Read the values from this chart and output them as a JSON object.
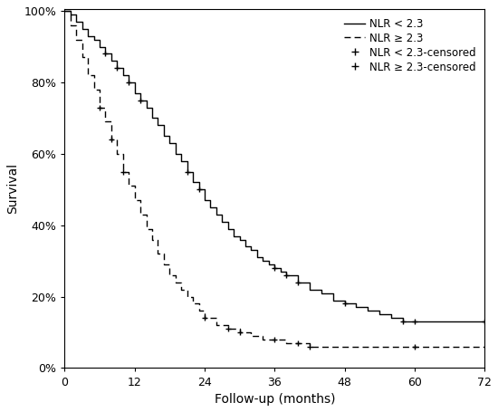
{
  "title": "",
  "xlabel": "Follow-up (months)",
  "ylabel": "Survival",
  "xlim": [
    0,
    72
  ],
  "ylim": [
    0,
    1.005
  ],
  "xticks": [
    0,
    12,
    24,
    36,
    48,
    60,
    72
  ],
  "yticks": [
    0.0,
    0.2,
    0.4,
    0.6,
    0.8,
    1.0
  ],
  "ytick_labels": [
    "0%",
    "20%",
    "40%",
    "60%",
    "80%",
    "100%"
  ],
  "background_color": "#ffffff",
  "nlr_low_x": [
    0,
    1,
    2,
    3,
    4,
    5,
    6,
    7,
    8,
    9,
    10,
    11,
    12,
    13,
    14,
    15,
    16,
    17,
    18,
    19,
    20,
    21,
    22,
    23,
    24,
    25,
    26,
    27,
    28,
    29,
    30,
    31,
    32,
    33,
    34,
    35,
    36,
    37,
    38,
    40,
    42,
    44,
    46,
    48,
    50,
    52,
    54,
    56,
    58,
    60,
    62,
    64,
    66,
    68,
    70,
    72
  ],
  "nlr_low_y": [
    1.0,
    0.99,
    0.97,
    0.95,
    0.93,
    0.92,
    0.9,
    0.88,
    0.86,
    0.84,
    0.82,
    0.8,
    0.77,
    0.75,
    0.73,
    0.7,
    0.68,
    0.65,
    0.63,
    0.6,
    0.58,
    0.55,
    0.52,
    0.5,
    0.47,
    0.45,
    0.43,
    0.41,
    0.39,
    0.37,
    0.36,
    0.34,
    0.33,
    0.31,
    0.3,
    0.29,
    0.28,
    0.27,
    0.26,
    0.24,
    0.22,
    0.21,
    0.19,
    0.18,
    0.17,
    0.16,
    0.15,
    0.14,
    0.13,
    0.13,
    0.13,
    0.13,
    0.13,
    0.13,
    0.13,
    0.13
  ],
  "nlr_high_x": [
    0,
    1,
    2,
    3,
    4,
    5,
    6,
    7,
    8,
    9,
    10,
    11,
    12,
    13,
    14,
    15,
    16,
    17,
    18,
    19,
    20,
    21,
    22,
    23,
    24,
    26,
    28,
    30,
    32,
    34,
    36,
    38,
    40,
    42,
    44,
    46,
    48,
    50,
    52,
    54,
    56,
    58,
    60,
    62,
    64,
    66,
    68,
    70,
    72
  ],
  "nlr_high_y": [
    1.0,
    0.96,
    0.92,
    0.87,
    0.82,
    0.78,
    0.73,
    0.69,
    0.64,
    0.6,
    0.55,
    0.51,
    0.47,
    0.43,
    0.39,
    0.36,
    0.32,
    0.29,
    0.26,
    0.24,
    0.22,
    0.2,
    0.18,
    0.16,
    0.14,
    0.12,
    0.11,
    0.1,
    0.09,
    0.08,
    0.08,
    0.07,
    0.07,
    0.06,
    0.06,
    0.06,
    0.06,
    0.06,
    0.06,
    0.06,
    0.06,
    0.06,
    0.06,
    0.06,
    0.06,
    0.06,
    0.06,
    0.06,
    0.06
  ],
  "censored_low_x": [
    7,
    9,
    11,
    13,
    21,
    23,
    36,
    38,
    40,
    48,
    58,
    60,
    72
  ],
  "censored_low_y": [
    0.88,
    0.84,
    0.8,
    0.75,
    0.55,
    0.5,
    0.28,
    0.26,
    0.24,
    0.18,
    0.13,
    0.13,
    0.13
  ],
  "censored_high_x": [
    6,
    8,
    10,
    24,
    28,
    30,
    36,
    40,
    42,
    60
  ],
  "censored_high_y": [
    0.73,
    0.64,
    0.55,
    0.14,
    0.11,
    0.1,
    0.08,
    0.07,
    0.06,
    0.06
  ],
  "legend_entries": [
    "NLR < 2.3",
    "NLR ≥ 2.3",
    "NLR < 2.3-censored",
    "NLR ≥ 2.3-censored"
  ],
  "fontsize_labels": 10,
  "fontsize_ticks": 9,
  "fontsize_legend": 8.5
}
